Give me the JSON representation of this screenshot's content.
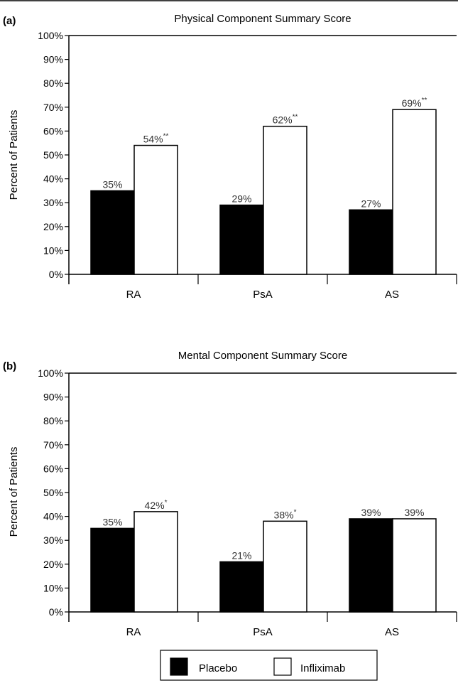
{
  "legend": {
    "items": [
      {
        "label": "Placebo",
        "color": "#000000"
      },
      {
        "label": "Infliximab",
        "color": "#ffffff"
      }
    ]
  },
  "chart_data": [
    {
      "type": "bar",
      "panel_label": "(a)",
      "title": "Physical Component Summary Score",
      "ylabel": "Percent of Patients",
      "xlabel": "",
      "ylim": [
        0,
        100
      ],
      "yticks": [
        "0%",
        "10%",
        "20%",
        "30%",
        "40%",
        "50%",
        "60%",
        "70%",
        "80%",
        "90%",
        "100%"
      ],
      "categories": [
        "RA",
        "PsA",
        "AS"
      ],
      "series": [
        {
          "name": "Placebo",
          "values": [
            35,
            29,
            27
          ],
          "labels": [
            "35%",
            "29%",
            "27%"
          ],
          "marks": [
            "",
            "",
            ""
          ]
        },
        {
          "name": "Infliximab",
          "values": [
            54,
            62,
            69
          ],
          "labels": [
            "54%",
            "62%",
            "69%"
          ],
          "marks": [
            "**",
            "**",
            "**"
          ]
        }
      ]
    },
    {
      "type": "bar",
      "panel_label": "(b)",
      "title": "Mental Component Summary Score",
      "ylabel": "Percent of Patients",
      "xlabel": "",
      "ylim": [
        0,
        100
      ],
      "yticks": [
        "0%",
        "10%",
        "20%",
        "30%",
        "40%",
        "50%",
        "60%",
        "70%",
        "80%",
        "90%",
        "100%"
      ],
      "categories": [
        "RA",
        "PsA",
        "AS"
      ],
      "series": [
        {
          "name": "Placebo",
          "values": [
            35,
            21,
            39
          ],
          "labels": [
            "35%",
            "21%",
            "39%"
          ],
          "marks": [
            "",
            "",
            ""
          ]
        },
        {
          "name": "Infliximab",
          "values": [
            42,
            38,
            39
          ],
          "labels": [
            "42%",
            "38%",
            "39%"
          ],
          "marks": [
            "*",
            "*",
            ""
          ]
        }
      ]
    }
  ]
}
